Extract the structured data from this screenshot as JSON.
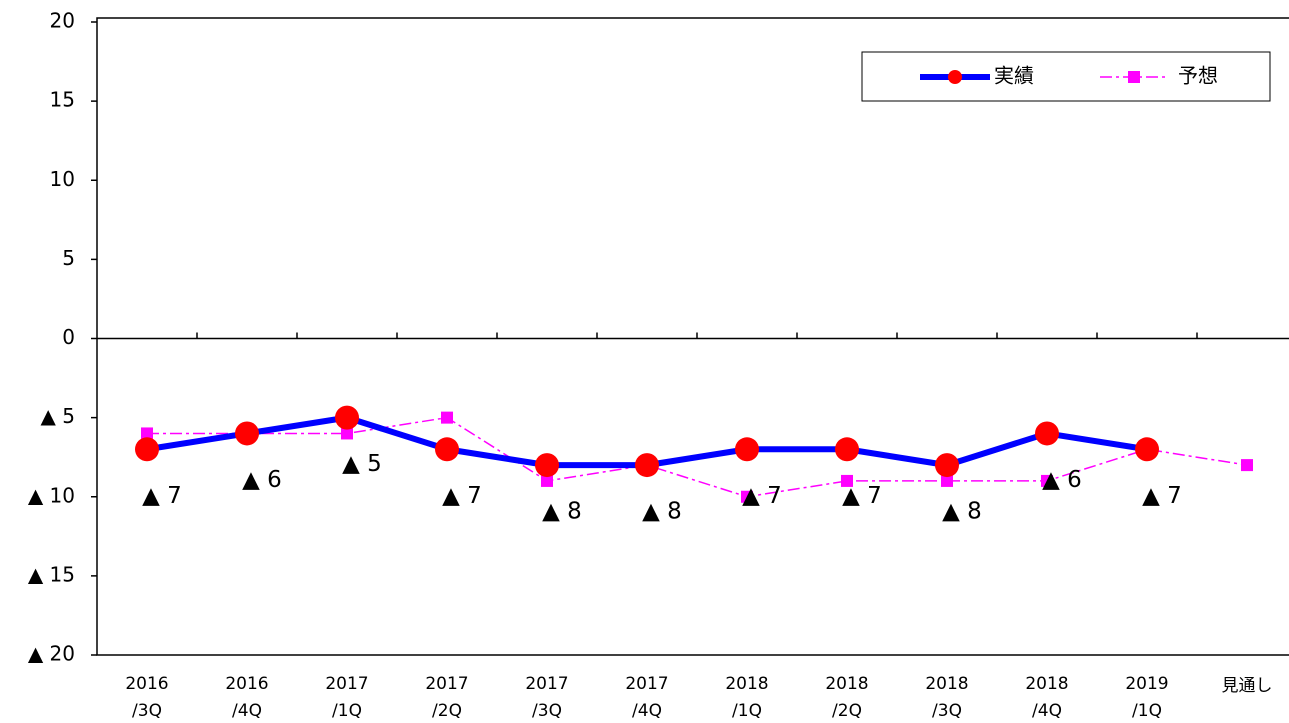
{
  "chart_data": {
    "type": "line",
    "categories": [
      "2016\n/3Q",
      "2016\n/4Q",
      "2017\n/1Q",
      "2017\n/2Q",
      "2017\n/3Q",
      "2017\n/4Q",
      "2018\n/1Q",
      "2018\n/2Q",
      "2018\n/3Q",
      "2018\n/4Q",
      "2019\n/1Q",
      "見通し"
    ],
    "series": [
      {
        "name": "実績",
        "color": "#0000ff",
        "marker_color": "#ff0000",
        "marker": "circle",
        "line_style": "solid",
        "values": [
          -7,
          -6,
          -5,
          -7,
          -8,
          -8,
          -7,
          -7,
          -8,
          -6,
          -7,
          null
        ],
        "value_labels": [
          "▲ 7",
          "▲ 6",
          "▲ 5",
          "▲ 7",
          "▲ 8",
          "▲ 8",
          "▲ 7",
          "▲ 7",
          "▲ 8",
          "▲ 6",
          "▲ 7",
          null
        ]
      },
      {
        "name": "予想",
        "color": "#ff00ff",
        "marker_color": "#ff00ff",
        "marker": "square",
        "line_style": "dashdot",
        "values": [
          -6,
          -6,
          -6,
          -5,
          -9,
          -8,
          -10,
          -9,
          -9,
          -9,
          -7,
          -8
        ]
      }
    ],
    "ylim": [
      -20,
      20
    ],
    "yticks": [
      {
        "value": -20,
        "label": "▲ 20"
      },
      {
        "value": -15,
        "label": "▲ 15"
      },
      {
        "value": -10,
        "label": "▲ 10"
      },
      {
        "value": -5,
        "label": "▲ 5"
      },
      0,
      5,
      10,
      15,
      20
    ],
    "legend": "top-right"
  }
}
